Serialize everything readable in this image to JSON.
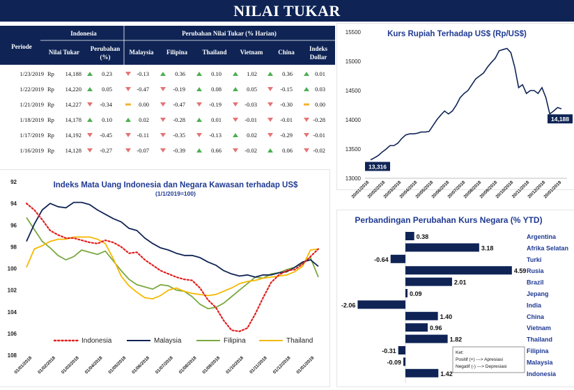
{
  "header": {
    "title": "NILAI TUKAR"
  },
  "colors": {
    "navy": "#0f2455",
    "up": "#4caf50",
    "down": "#e57373",
    "flat": "#f2b233"
  },
  "table": {
    "periode_label": "Periode",
    "group_indonesia": "Indonesia",
    "group_change": "Perubahan Nilai Tukar (% Harian)",
    "col_nilai": "Nilai Tukar",
    "col_perubahan_1": "Perubahan",
    "col_perubahan_2": "(%)",
    "countries": [
      "Malaysia",
      "Filipina",
      "Thailand",
      "Vietnam",
      "China"
    ],
    "col_dollar_1": "Indeks",
    "col_dollar_2": "Dollar",
    "rows": [
      {
        "date": "1/23/2019",
        "cur": "Rp",
        "rate": "14,188",
        "chg": "0.23",
        "vals": [
          "-0.13",
          "0.36",
          "0.10",
          "1.02",
          "0.36",
          "0.01"
        ],
        "dirs": [
          "down",
          "up",
          "up",
          "up",
          "up",
          "up"
        ]
      },
      {
        "date": "1/22/2019",
        "cur": "Rp",
        "rate": "14,220",
        "chg": "0.05",
        "vals": [
          "-0.47",
          "-0.19",
          "0.08",
          "0.05",
          "-0.15",
          "0.03"
        ],
        "dirs": [
          "down",
          "down",
          "up",
          "up",
          "down",
          "up"
        ]
      },
      {
        "date": "1/21/2019",
        "cur": "Rp",
        "rate": "14,227",
        "chg": "-0.34",
        "vals": [
          "0.00",
          "-0.47",
          "-0.19",
          "-0.03",
          "-0.30",
          "0.00"
        ],
        "dirs": [
          "flat",
          "down",
          "down",
          "down",
          "down",
          "flat"
        ]
      },
      {
        "date": "1/18/2019",
        "cur": "Rp",
        "rate": "14,178",
        "chg": "0.10",
        "vals": [
          "0.02",
          "-0.28",
          "0.01",
          "-0.01",
          "-0.01",
          "-0.28"
        ],
        "dirs": [
          "up",
          "down",
          "up",
          "down",
          "down",
          "down"
        ]
      },
      {
        "date": "1/17/2019",
        "cur": "Rp",
        "rate": "14,192",
        "chg": "-0.45",
        "vals": [
          "-0.11",
          "-0.35",
          "-0.13",
          "0.02",
          "-0.29",
          "-0.01"
        ],
        "dirs": [
          "down",
          "down",
          "down",
          "up",
          "down",
          "down"
        ]
      },
      {
        "date": "1/16/2019",
        "cur": "Rp",
        "rate": "14,128",
        "chg": "-0.27",
        "vals": [
          "-0.07",
          "-0.39",
          "0.66",
          "-0.02",
          "0.06",
          "-0.02"
        ],
        "dirs": [
          "down",
          "down",
          "up",
          "down",
          "up",
          "down"
        ]
      }
    ],
    "chg_dirs": [
      "up",
      "up",
      "down",
      "up",
      "down",
      "down"
    ]
  },
  "chart_data": [
    {
      "type": "line",
      "title": "Kurs Rupiah Terhadap US$ (Rp/US$)",
      "ylim": [
        13000,
        15500
      ],
      "yticks": [
        13000,
        13500,
        14000,
        14500,
        15000,
        15500
      ],
      "xticks": [
        "20/01/2018",
        "20/02/2018",
        "20/03/2018",
        "20/04/2018",
        "20/05/2018",
        "20/06/2018",
        "20/07/2018",
        "20/08/2018",
        "20/09/2018",
        "20/10/2018",
        "20/11/2018",
        "20/12/2018",
        "20/01/2019"
      ],
      "series": [
        {
          "values": [
            13316,
            13350,
            13390,
            13450,
            13500,
            13560,
            13560,
            13600,
            13680,
            13740,
            13760,
            13760,
            13770,
            13790,
            13790,
            13800,
            13900,
            14000,
            14080,
            14150,
            14100,
            14150,
            14250,
            14380,
            14450,
            14500,
            14600,
            14700,
            14750,
            14800,
            14900,
            14980,
            15050,
            15180,
            15200,
            15220,
            15150,
            14900,
            14550,
            14600,
            14450,
            14500,
            14500,
            14450,
            14550,
            14380,
            14100,
            14150,
            14210,
            14188
          ]
        }
      ],
      "annotations": [
        "13,316",
        "14,188"
      ]
    },
    {
      "type": "line",
      "title": "Indeks Mata Uang Indonesia dan Negara Kawasan terhadap US$",
      "subtitle": "(1/1/2019=100)",
      "ylim": [
        92,
        108
      ],
      "y_inverted": true,
      "yticks": [
        92,
        94,
        96,
        98,
        100,
        102,
        104,
        106,
        108
      ],
      "xticks": [
        "01/01/2018",
        "01/02/2018",
        "01/03/2018",
        "01/04/2018",
        "01/05/2018",
        "01/06/2018",
        "01/07/2018",
        "01/08/2018",
        "01/09/2018",
        "01/10/2018",
        "01/11/2018",
        "01/12/2018",
        "01/01/2019"
      ],
      "series": [
        {
          "name": "Indonesia",
          "color": "#e02020",
          "values": [
            94.0,
            94.6,
            95.5,
            96.5,
            96.9,
            97.2,
            97.2,
            97.4,
            97.6,
            97.7,
            97.4,
            97.6,
            98.0,
            98.6,
            98.5,
            99.2,
            99.7,
            100.2,
            100.5,
            100.8,
            101.0,
            101.1,
            101.8,
            102.9,
            103.6,
            104.8,
            105.7,
            105.8,
            105.5,
            104.2,
            102.7,
            101.3,
            100.6,
            100.2,
            100.1,
            99.6,
            98.9,
            98.2
          ]
        },
        {
          "name": "Malaysia",
          "color": "#0f2455",
          "values": [
            97.5,
            95.9,
            94.6,
            94.0,
            94.3,
            94.4,
            93.9,
            93.9,
            94.1,
            94.6,
            95.0,
            95.4,
            95.7,
            96.3,
            96.5,
            97.2,
            97.7,
            98.1,
            98.3,
            98.6,
            98.8,
            98.8,
            99.0,
            99.4,
            99.7,
            100.2,
            100.5,
            100.7,
            100.6,
            100.8,
            100.6,
            100.6,
            100.4,
            100.3,
            99.9,
            99.4,
            99.2,
            99.8
          ]
        },
        {
          "name": "Filipina",
          "color": "#7aa840",
          "values": [
            95.3,
            96.4,
            97.5,
            98.1,
            98.8,
            99.2,
            98.9,
            98.3,
            98.5,
            98.7,
            98.4,
            99.3,
            100.2,
            101.0,
            101.5,
            101.7,
            101.9,
            101.5,
            101.6,
            102.0,
            102.1,
            102.6,
            103.3,
            103.7,
            103.6,
            103.2,
            102.6,
            102.0,
            101.4,
            100.8,
            100.9,
            100.5,
            100.4,
            100.1,
            99.9,
            99.5,
            99.0,
            100.8
          ]
        },
        {
          "name": "Thailand",
          "color": "#f5b800",
          "values": [
            99.9,
            98.2,
            97.9,
            97.5,
            97.3,
            97.3,
            97.1,
            97.1,
            97.1,
            97.3,
            97.7,
            99.1,
            100.7,
            101.6,
            102.2,
            102.7,
            102.8,
            102.5,
            102.0,
            101.8,
            102.1,
            102.3,
            102.4,
            102.5,
            102.4,
            102.1,
            101.8,
            101.4,
            101.2,
            101.1,
            100.9,
            100.8,
            100.7,
            100.6,
            100.3,
            99.8,
            98.3,
            98.2
          ]
        }
      ]
    },
    {
      "type": "bar",
      "orientation": "horizontal",
      "title": "Perbandingan Perubahan Kurs Negara (% YTD)",
      "categories": [
        "Argentina",
        "Afrika Selatan",
        "Turki",
        "Rusia",
        "Brazil",
        "Jepang",
        "India",
        "China",
        "Vietnam",
        "Thailand",
        "Filipina",
        "Malaysia",
        "Indonesia"
      ],
      "values": [
        0.38,
        3.18,
        -0.64,
        4.59,
        2.01,
        0.09,
        -2.06,
        1.4,
        0.96,
        1.82,
        -0.31,
        -0.09,
        1.42
      ],
      "labels": [
        "0.38",
        "3.18",
        "-0.64",
        "4.59",
        "2.01",
        "0.09",
        "-2.06",
        "1.40",
        "0.96",
        "1.82",
        "-0.31",
        "-0.09",
        "1.42"
      ],
      "note": [
        "Ket:",
        "Positif (+) ---> Apresiasi",
        "Negatif (-) ---> Depresiasi"
      ]
    }
  ]
}
